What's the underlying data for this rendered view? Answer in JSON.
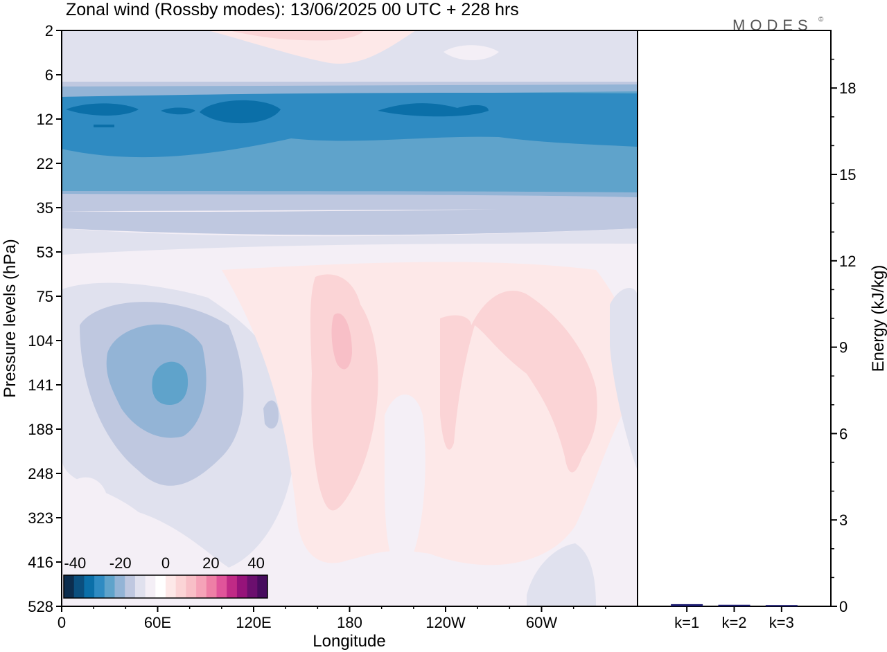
{
  "chart_data": {
    "type": "heatmap",
    "title": "Zonal wind (Rossby modes):  13/06/2025  00 UTC  + 228 hrs",
    "logo": "MODES",
    "logo_mark": "©",
    "xlabel": "Longitude",
    "ylabel": "Pressure levels (hPa)",
    "x_ticks": [
      "0",
      "60E",
      "120E",
      "180",
      "120W",
      "60W"
    ],
    "y_ticks": [
      "2",
      "6",
      "12",
      "22",
      "35",
      "53",
      "75",
      "104",
      "141",
      "188",
      "248",
      "323",
      "416",
      "528"
    ],
    "colorbar": {
      "tick_labels": [
        "-40",
        "-20",
        "0",
        "20",
        "40"
      ],
      "range": [
        -45,
        45
      ],
      "step": 5,
      "colors": [
        "#0c2d4e",
        "#0b4f7e",
        "#0b6fa8",
        "#2f8bc2",
        "#5fa3cb",
        "#93b4d6",
        "#bfc8e0",
        "#e0e1ee",
        "#f4eff6",
        "#ffffff",
        "#fde8e8",
        "#fbd4d6",
        "#f8bfc7",
        "#f5a3b8",
        "#ee7fa6",
        "#e0549a",
        "#c02a86",
        "#96137a",
        "#6b0f6e",
        "#470c5e"
      ]
    },
    "energy_panel": {
      "ylabel": "Energy (kJ/kg)",
      "y_ticks": [
        "0",
        "3",
        "6",
        "9",
        "12",
        "15",
        "18"
      ],
      "ylim": [
        0,
        20
      ],
      "categories": [
        "k=1",
        "k=2",
        "k=3"
      ],
      "values": [
        0.05,
        0.03,
        0.02
      ],
      "bar_color": "#1a1a6e"
    }
  }
}
